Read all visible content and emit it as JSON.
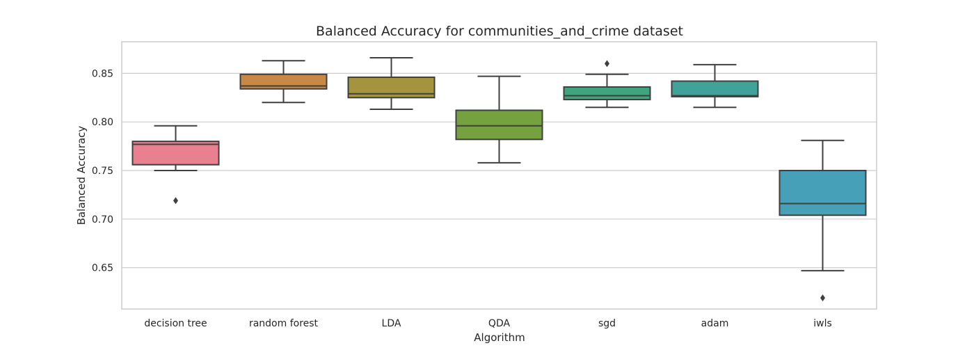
{
  "chart_data": {
    "type": "box",
    "title": "Balanced Accuracy for communities_and_crime dataset",
    "xlabel": "Algorithm",
    "ylabel": "Balanced Accuracy",
    "ylim": [
      0.6075,
      0.8825
    ],
    "yticks": [
      0.65,
      0.7,
      0.75,
      0.8,
      0.85
    ],
    "ytick_labels": [
      "0.65",
      "0.70",
      "0.75",
      "0.80",
      "0.85"
    ],
    "grid": "horizontal",
    "categories": [
      "decision tree",
      "random forest",
      "LDA",
      "QDA",
      "sgd",
      "adam",
      "iwls"
    ],
    "colors": [
      "#e8808f",
      "#c98844",
      "#a5943e",
      "#75a23f",
      "#3fa57e",
      "#41a299",
      "#46a0b7"
    ],
    "boxes": [
      {
        "name": "decision tree",
        "whisker_low": 0.75,
        "q1": 0.756,
        "median": 0.777,
        "q3": 0.78,
        "whisker_high": 0.796,
        "outliers": [
          0.719
        ]
      },
      {
        "name": "random forest",
        "whisker_low": 0.82,
        "q1": 0.834,
        "median": 0.837,
        "q3": 0.849,
        "whisker_high": 0.863,
        "outliers": []
      },
      {
        "name": "LDA",
        "whisker_low": 0.813,
        "q1": 0.825,
        "median": 0.829,
        "q3": 0.846,
        "whisker_high": 0.866,
        "outliers": []
      },
      {
        "name": "QDA",
        "whisker_low": 0.758,
        "q1": 0.782,
        "median": 0.796,
        "q3": 0.812,
        "whisker_high": 0.847,
        "outliers": []
      },
      {
        "name": "sgd",
        "whisker_low": 0.815,
        "q1": 0.823,
        "median": 0.827,
        "q3": 0.836,
        "whisker_high": 0.849,
        "outliers": [
          0.86
        ]
      },
      {
        "name": "adam",
        "whisker_low": 0.815,
        "q1": 0.826,
        "median": 0.827,
        "q3": 0.842,
        "whisker_high": 0.859,
        "outliers": []
      },
      {
        "name": "iwls",
        "whisker_low": 0.647,
        "q1": 0.704,
        "median": 0.716,
        "q3": 0.75,
        "whisker_high": 0.781,
        "outliers": [
          0.619
        ]
      }
    ]
  }
}
